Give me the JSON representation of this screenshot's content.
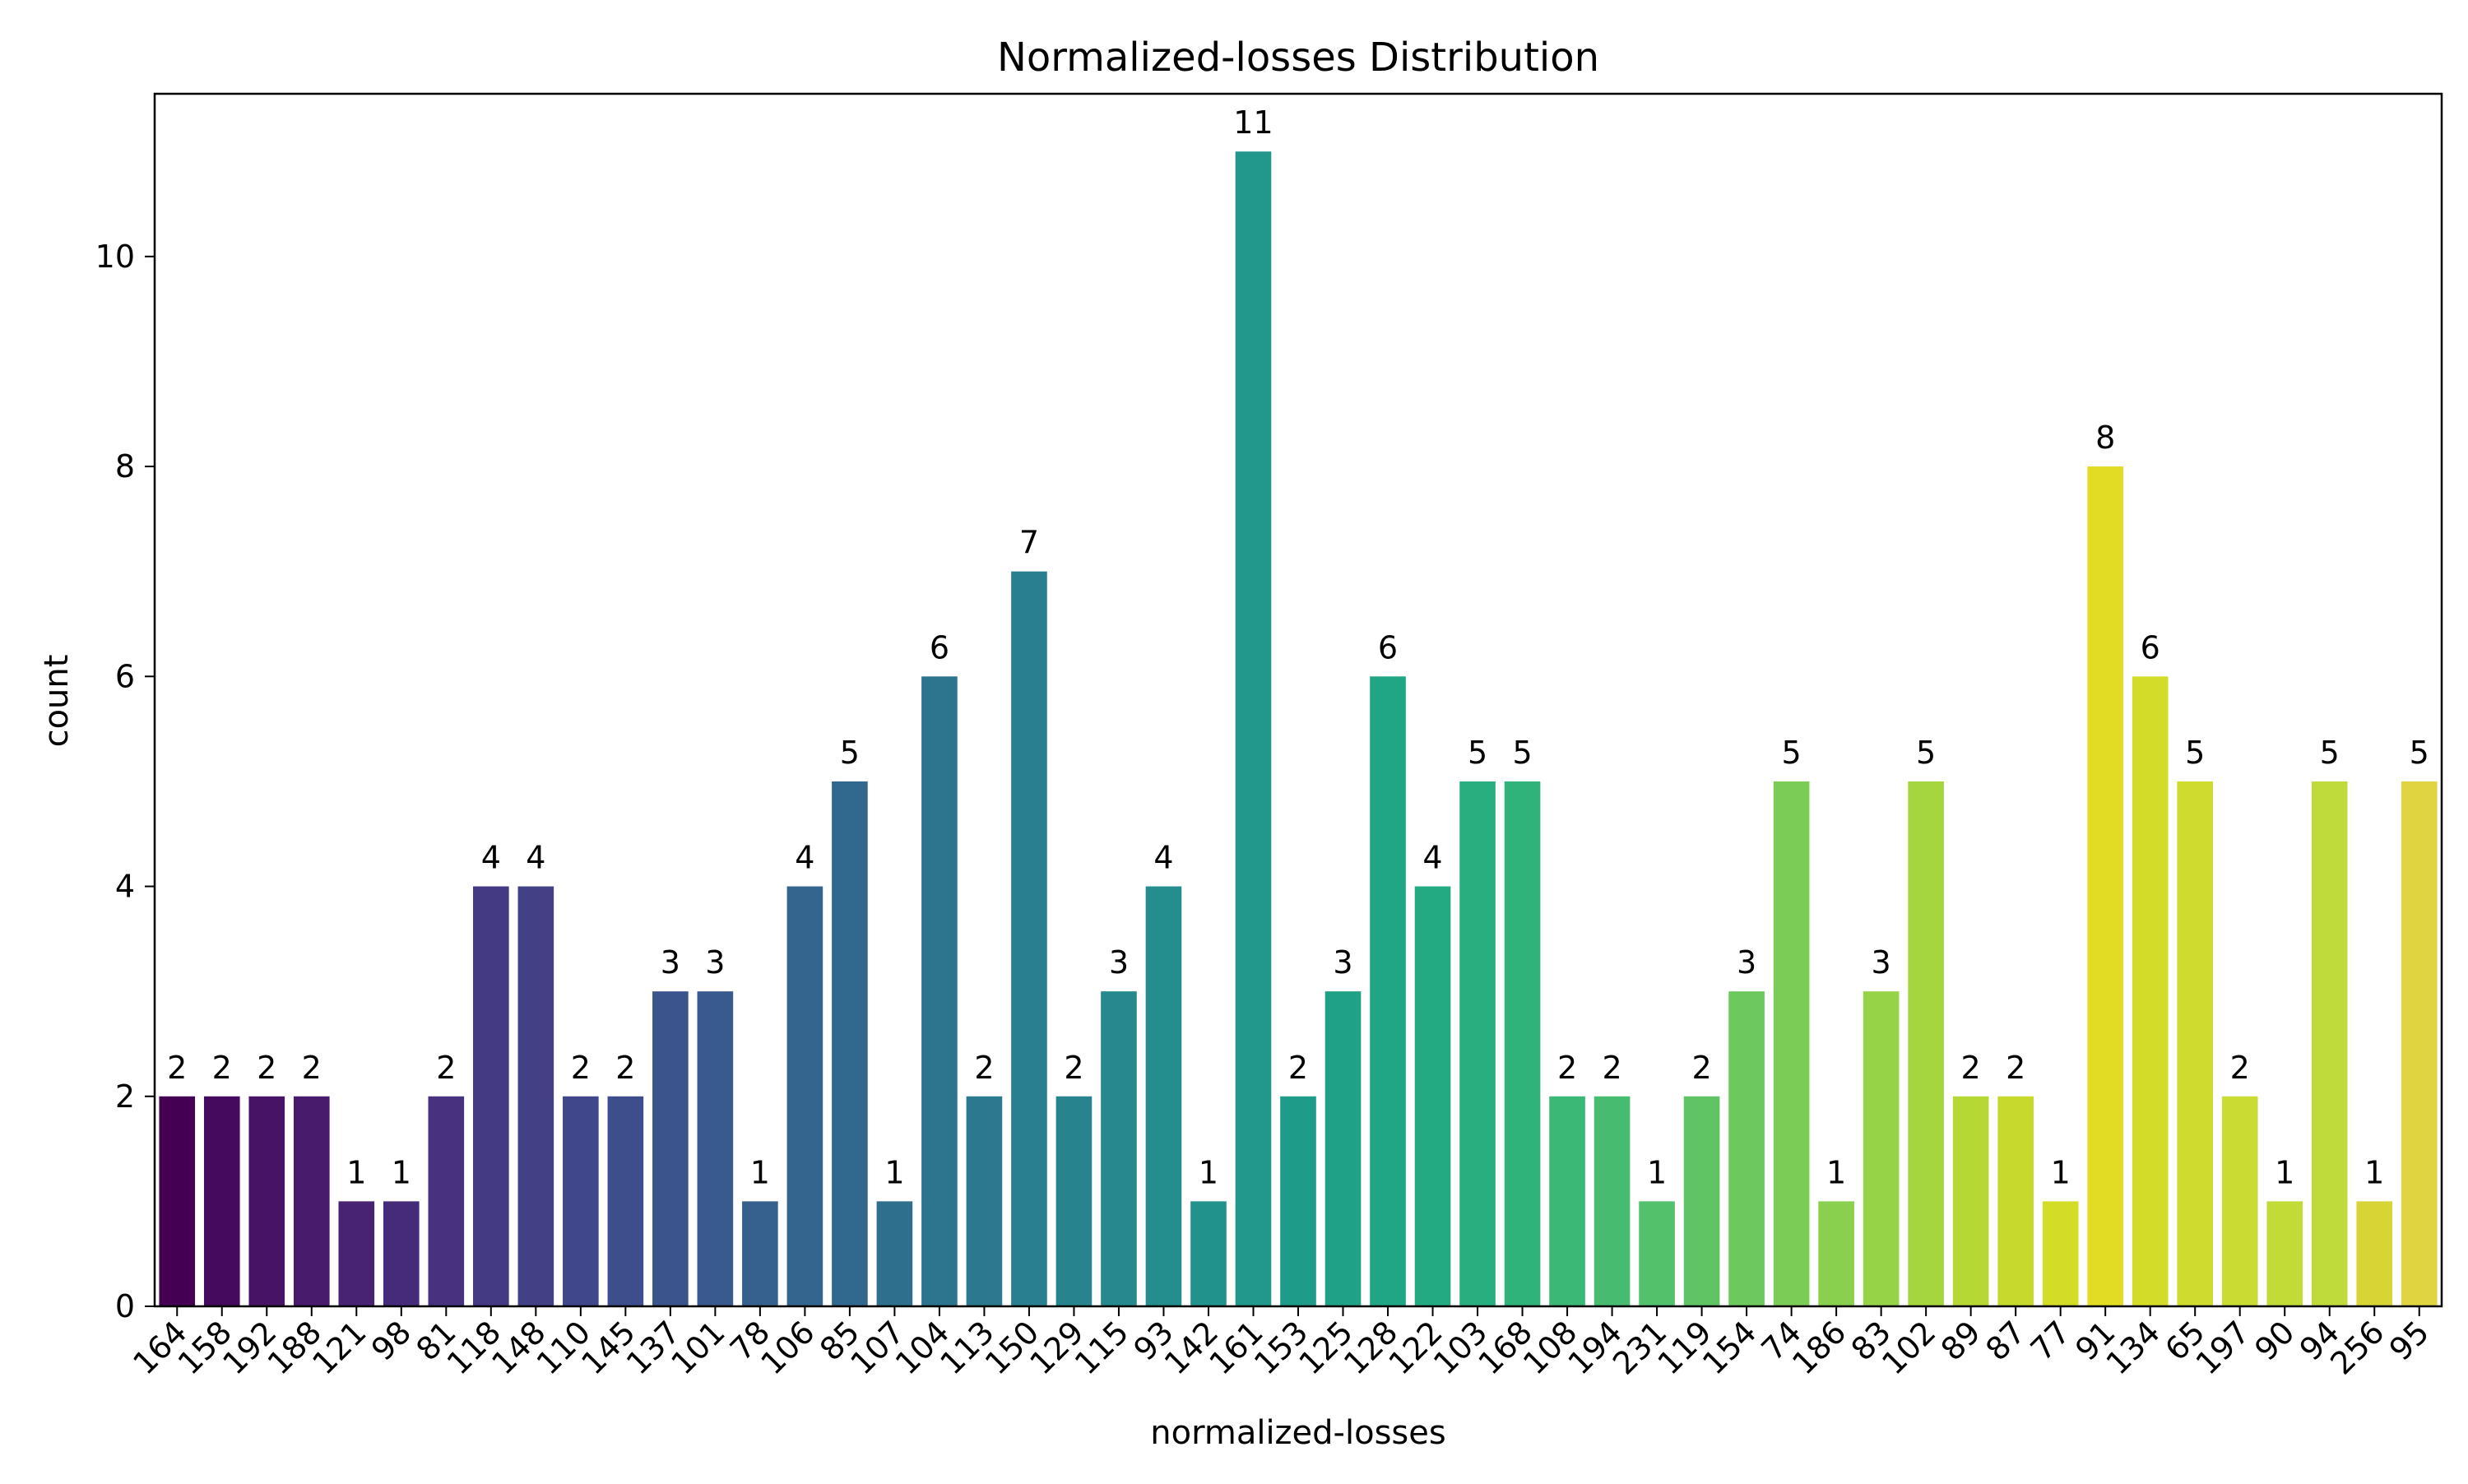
{
  "chart_data": {
    "type": "bar",
    "title": "Normalized-losses Distribution",
    "xlabel": "normalized-losses",
    "ylabel": "count",
    "ylim": [
      0,
      11.55
    ],
    "yticks": [
      0,
      2,
      4,
      6,
      8,
      10
    ],
    "grid": false,
    "legend": "none",
    "categories": [
      "164",
      "158",
      "192",
      "188",
      "121",
      "98",
      "81",
      "118",
      "148",
      "110",
      "145",
      "137",
      "101",
      "78",
      "106",
      "85",
      "107",
      "104",
      "113",
      "150",
      "129",
      "115",
      "93",
      "142",
      "161",
      "153",
      "125",
      "128",
      "122",
      "103",
      "168",
      "108",
      "194",
      "231",
      "119",
      "154",
      "74",
      "186",
      "83",
      "102",
      "89",
      "87",
      "77",
      "91",
      "134",
      "65",
      "197",
      "90",
      "94",
      "256",
      "95"
    ],
    "values": [
      2,
      2,
      2,
      2,
      1,
      1,
      2,
      4,
      4,
      2,
      2,
      3,
      3,
      1,
      4,
      5,
      1,
      6,
      2,
      7,
      2,
      3,
      4,
      1,
      11,
      2,
      3,
      6,
      4,
      5,
      5,
      2,
      2,
      1,
      2,
      3,
      5,
      1,
      3,
      5,
      2,
      2,
      1,
      8,
      6,
      5,
      2,
      1,
      5,
      1,
      5
    ],
    "colors": [
      "#440154",
      "#450a5d",
      "#471365",
      "#481b6d",
      "#482374",
      "#472b7b",
      "#46327e",
      "#443a83",
      "#424186",
      "#40478a",
      "#3e4d8b",
      "#3b548c",
      "#395a8c",
      "#36608d",
      "#34658e",
      "#31698e",
      "#2f6f8e",
      "#2d748e",
      "#2b798e",
      "#297f8e",
      "#27848e",
      "#25898e",
      "#238e8d",
      "#22928c",
      "#21988b",
      "#1f9c89",
      "#1fa187",
      "#20a585",
      "#24aa83",
      "#29af7f",
      "#30b37b",
      "#3bb876",
      "#47bc71",
      "#53c06b",
      "#60c464",
      "#6dc85d",
      "#7acc56",
      "#89d04e",
      "#97d346",
      "#a6d63d",
      "#b5d834",
      "#c5da2c",
      "#d3dc27",
      "#e2dd24",
      "#d4dc2a",
      "#cfdc2f",
      "#c9dc33",
      "#c3db37",
      "#bedb3b",
      "#d6d535",
      "#e0d540"
    ]
  }
}
